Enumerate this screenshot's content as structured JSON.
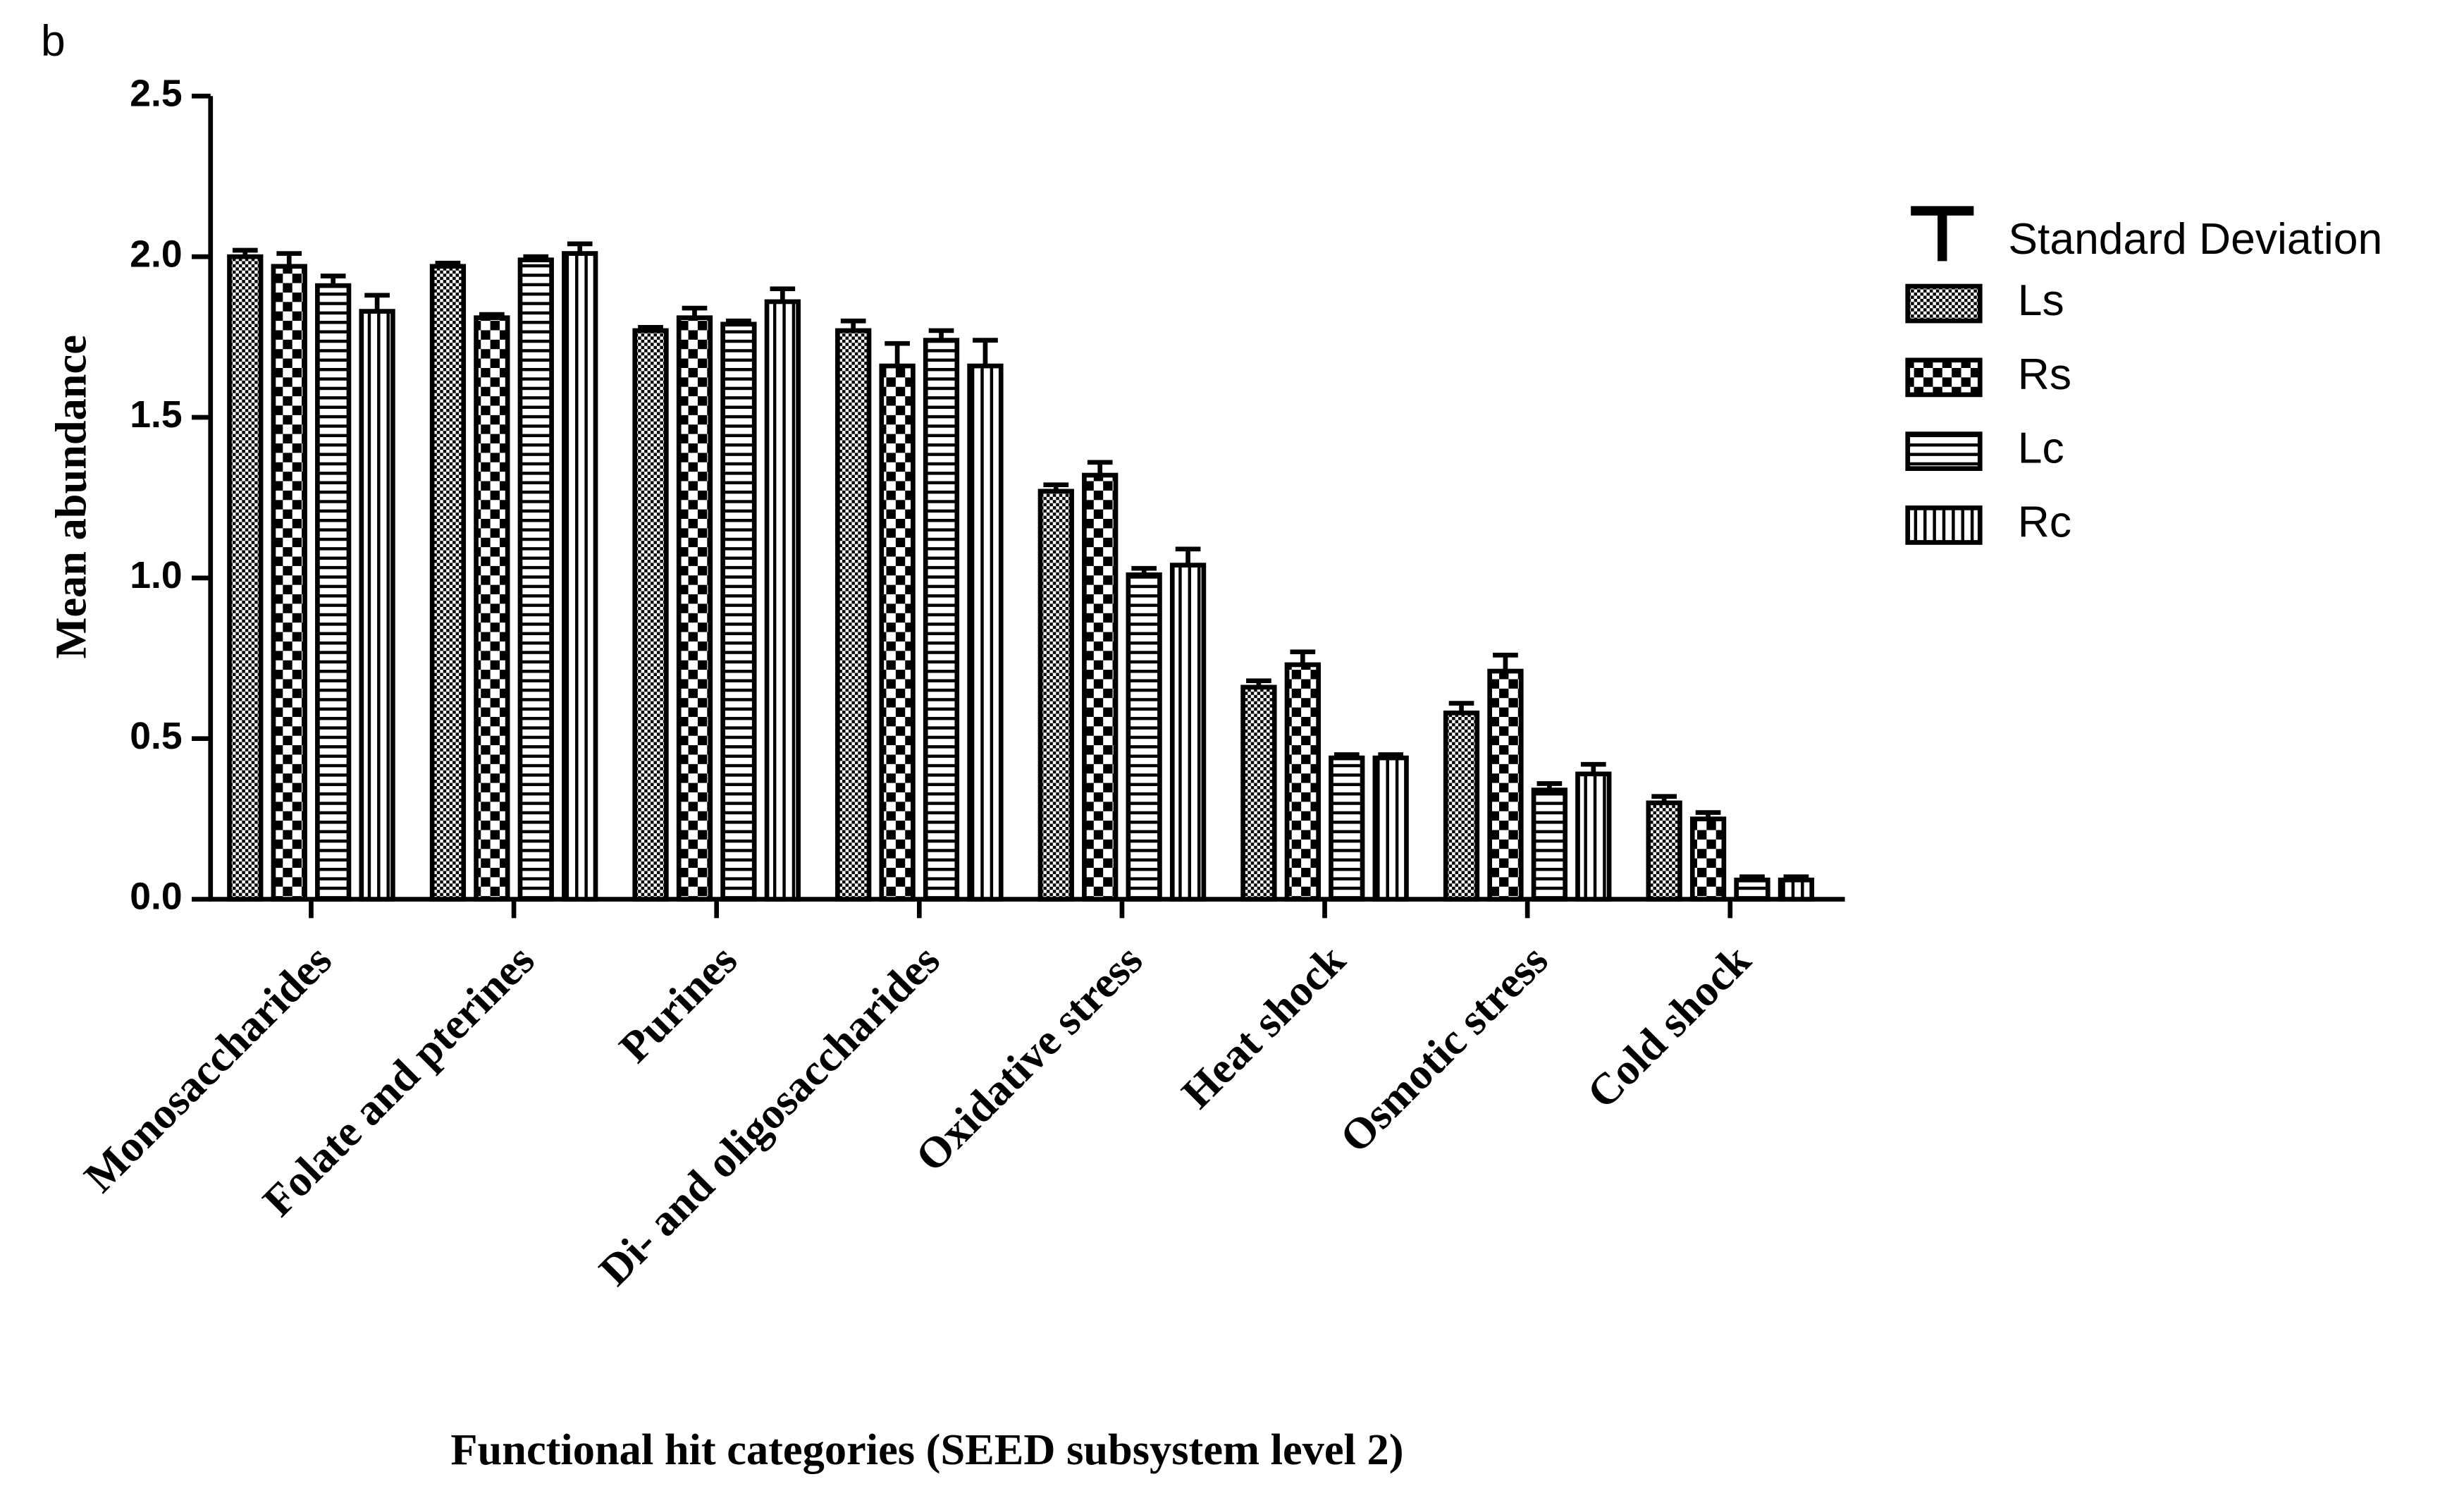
{
  "chart_data": {
    "type": "bar",
    "panel_label": "b",
    "y_label": "Mean abundance",
    "x_label": "Functional hit categories (SEED subsystem level 2)",
    "error_label": "Standard Deviation",
    "categories": [
      "Monosaccharides",
      "Folate and pterines",
      "Purines",
      "Di- and oligosaccharides",
      "Oxidative stress",
      "Heat shock",
      "Osmotic stress",
      "Cold shock"
    ],
    "series": [
      {
        "name": "Ls",
        "color": "#000000",
        "values": [
          2.0,
          1.97,
          1.77,
          1.77,
          1.27,
          0.66,
          0.58,
          0.3
        ],
        "errors": [
          0.02,
          0.01,
          0.01,
          0.03,
          0.02,
          0.02,
          0.03,
          0.02
        ]
      },
      {
        "name": "Rs",
        "color": "#000000",
        "values": [
          1.97,
          1.81,
          1.81,
          1.66,
          1.32,
          0.73,
          0.71,
          0.25
        ],
        "errors": [
          0.04,
          0.01,
          0.03,
          0.07,
          0.04,
          0.04,
          0.05,
          0.02
        ]
      },
      {
        "name": "Lc",
        "color": "#000000",
        "values": [
          1.91,
          1.99,
          1.79,
          1.74,
          1.01,
          0.44,
          0.34,
          0.06
        ],
        "errors": [
          0.03,
          0.01,
          0.01,
          0.03,
          0.02,
          0.01,
          0.02,
          0.01
        ]
      },
      {
        "name": "Rc",
        "color": "#000000",
        "values": [
          1.83,
          2.01,
          1.86,
          1.66,
          1.04,
          0.44,
          0.39,
          0.06
        ],
        "errors": [
          0.05,
          0.03,
          0.04,
          0.08,
          0.05,
          0.01,
          0.03,
          0.01
        ]
      }
    ],
    "ylim": [
      0,
      2.5
    ],
    "yticks": [
      {
        "value": 0,
        "label": "0.0"
      },
      {
        "value": 0.5,
        "label": "0.5"
      },
      {
        "value": 1,
        "label": "1.0"
      },
      {
        "value": 1.5,
        "label": "1.5"
      },
      {
        "value": 2,
        "label": "2.0"
      },
      {
        "value": 2.5,
        "label": "2.5"
      }
    ],
    "grid": false
  }
}
